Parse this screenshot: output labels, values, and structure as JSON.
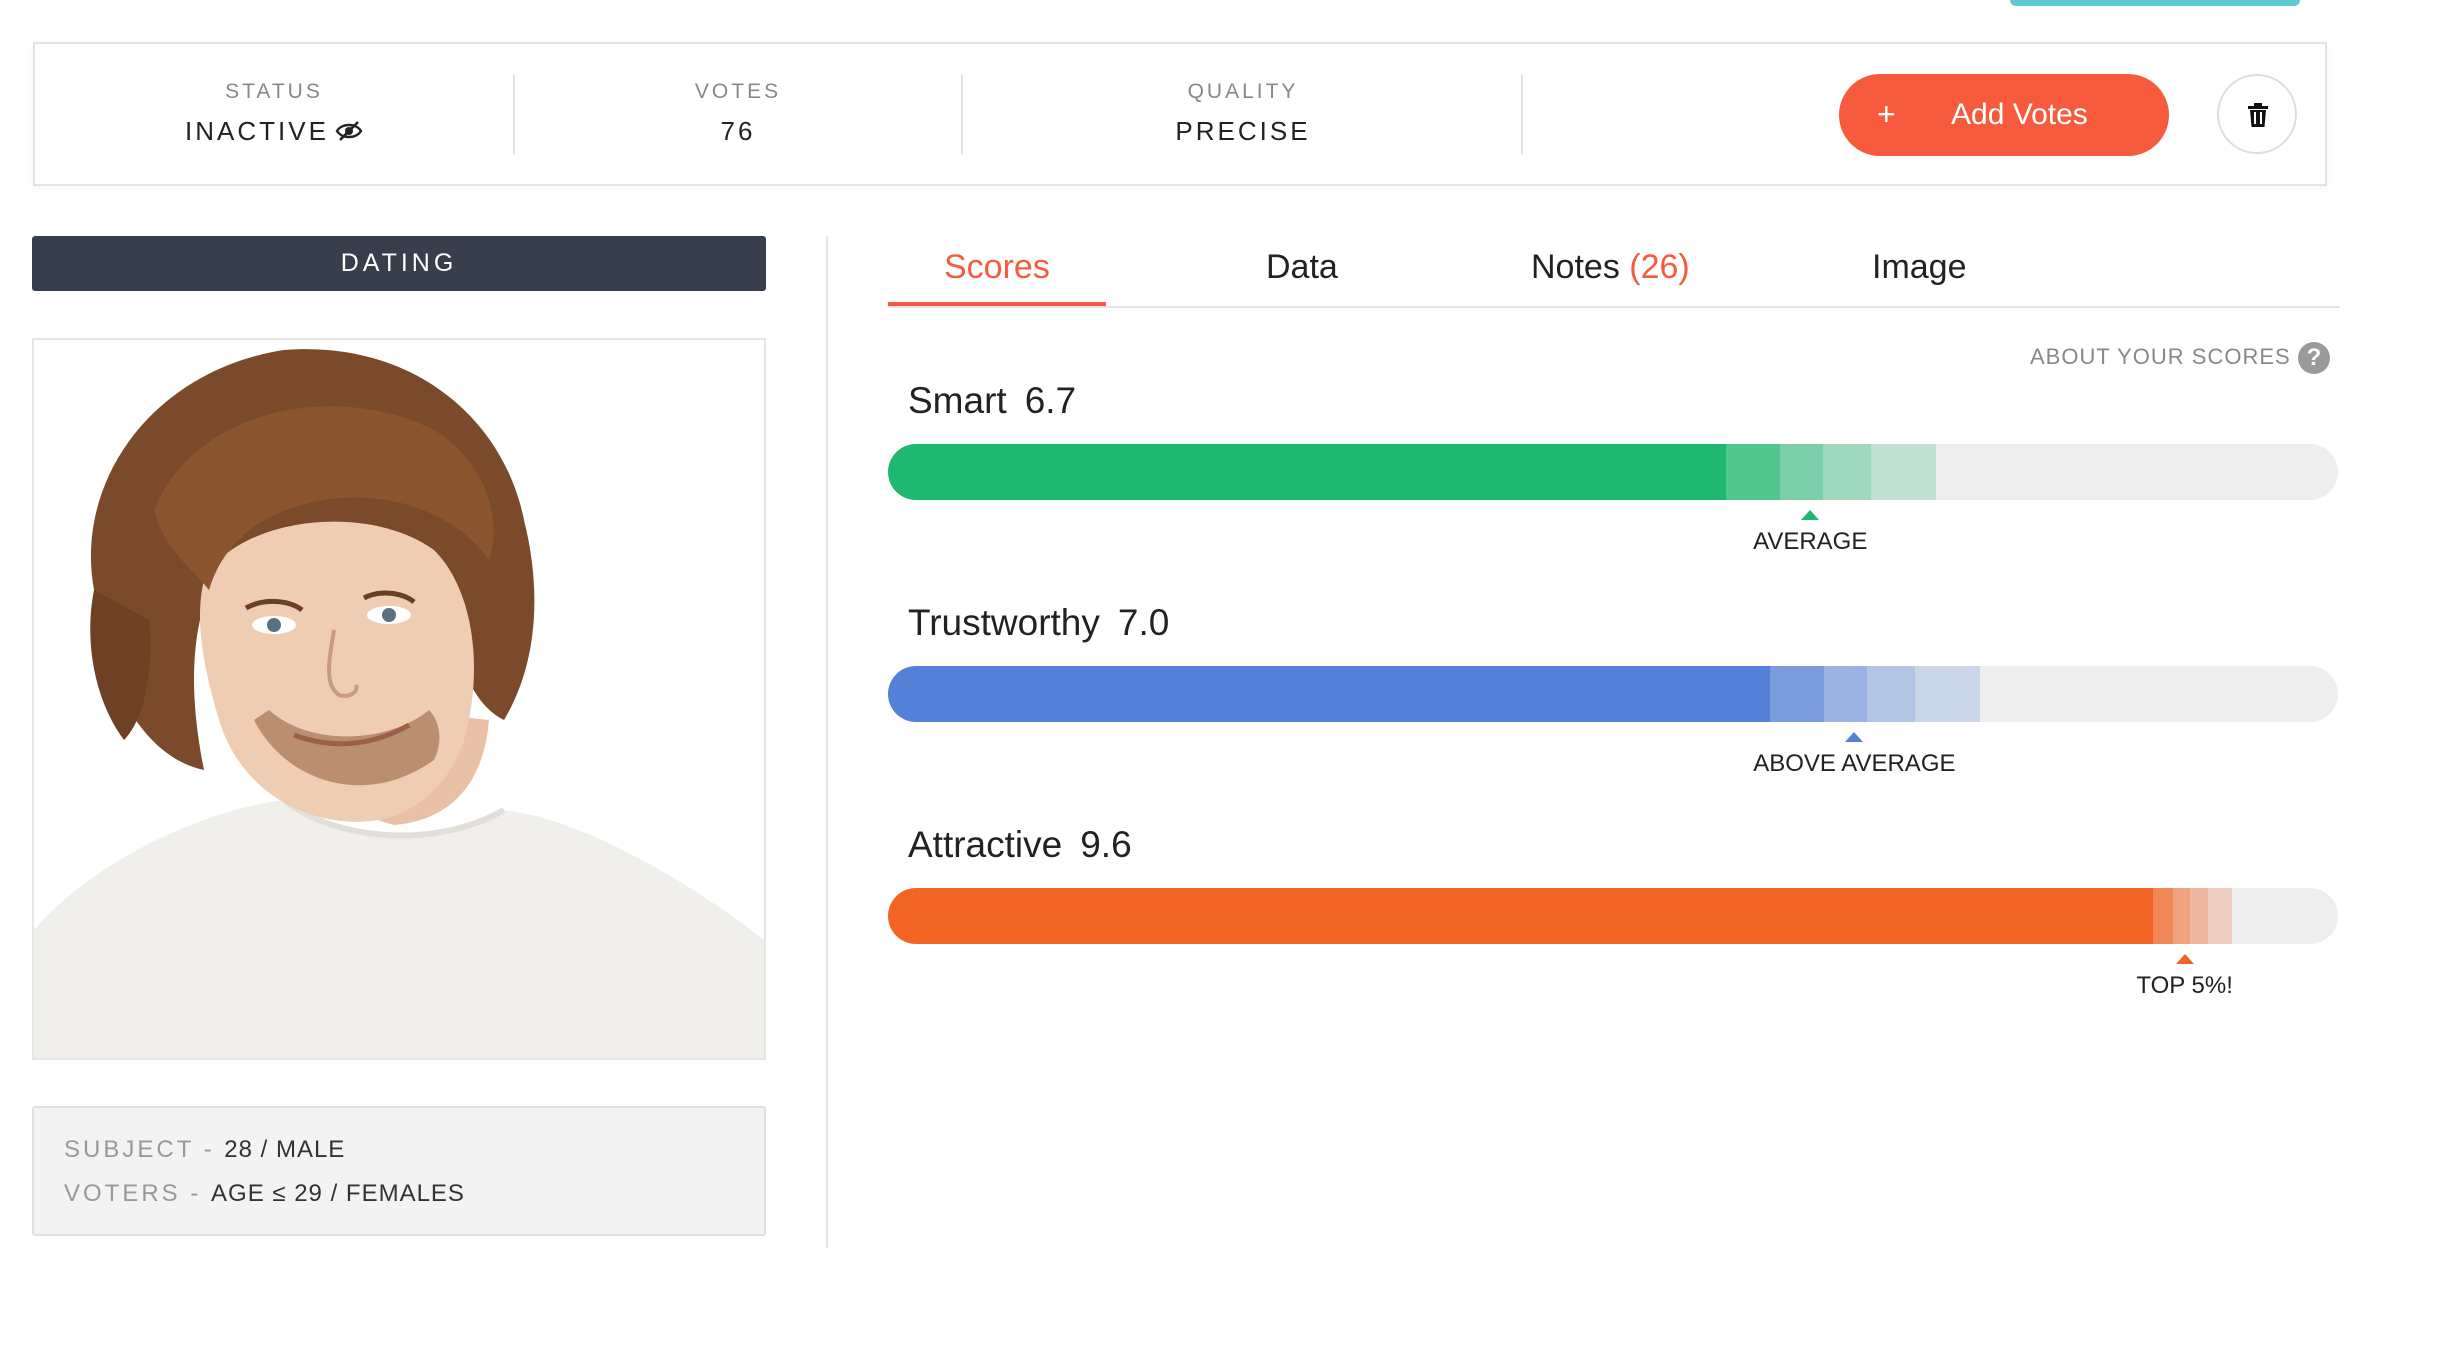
{
  "status_bar": {
    "status": {
      "label": "STATUS",
      "value": "INACTIVE"
    },
    "votes": {
      "label": "VOTES",
      "value": "76"
    },
    "quality": {
      "label": "QUALITY",
      "value": "PRECISE"
    },
    "add_votes_plus": "+",
    "add_votes_label": "Add Votes"
  },
  "left": {
    "category": "DATING",
    "info": {
      "subject_key": "SUBJECT",
      "subject_value": "28 / MALE",
      "voters_key": "VOTERS",
      "voters_value": "AGE ≤ 29 / FEMALES",
      "sep": " - "
    }
  },
  "tabs": {
    "scores": "Scores",
    "data": "Data",
    "notes": "Notes",
    "notes_count": "(26)",
    "image": "Image",
    "active": "Scores"
  },
  "about_scores": "ABOUT YOUR SCORES",
  "about_icon": "?",
  "scores": [
    {
      "name": "Smart",
      "value": "6.7",
      "score": 6.7,
      "badge": "AVERAGE",
      "color": "#1eb871",
      "marker_color": "#1eb871"
    },
    {
      "name": "Trustworthy",
      "value": "7.0",
      "score": 7.0,
      "badge": "ABOVE AVERAGE",
      "color": "#5481d7",
      "marker_color": "#5481d7"
    },
    {
      "name": "Attractive",
      "value": "9.6",
      "score": 9.6,
      "badge": "TOP 5%!",
      "color": "#f26524",
      "marker_color": "#f26524"
    }
  ],
  "colors": {
    "accent": "#f65b3e",
    "dark_bar": "#373e4c",
    "track": "#eeeeee"
  },
  "icons": {
    "status": "eye-slash-icon",
    "trash": "trash-icon",
    "help": "question-circle-icon"
  }
}
